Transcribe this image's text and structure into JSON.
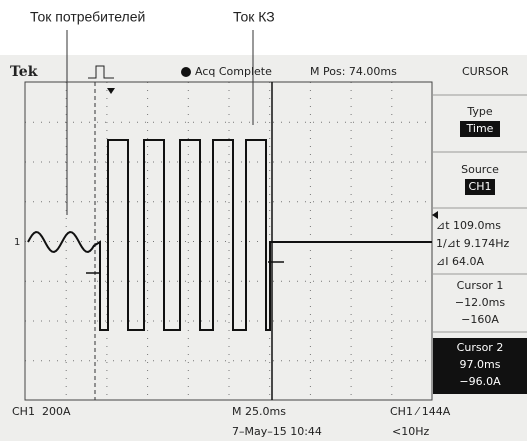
{
  "annotations": {
    "consumer_current": "Ток потребителей",
    "short_circuit_current": "Ток КЗ"
  },
  "header": {
    "brand": "Tek",
    "status": "Acq Complete",
    "position": "M Pos: 74.00ms",
    "menu": "CURSOR"
  },
  "screen": {
    "channel_marker": "1"
  },
  "side_panel": {
    "type_label": "Type",
    "type_value": "Time",
    "source_label": "Source",
    "source_value": "CH1",
    "delta_t": "⊿t 109.0ms",
    "inverse_delta_t": "1/⊿t 9.174Hz",
    "delta_i": "⊿I 64.0A",
    "cursor1_label": "Cursor 1",
    "cursor1_time": "−12.0ms",
    "cursor1_value": "−160A",
    "cursor2_label": "Cursor 2",
    "cursor2_time": "97.0ms",
    "cursor2_value": "−96.0A"
  },
  "footer": {
    "channel_scale": "CH1  200A",
    "time_scale": "M 25.0ms",
    "trigger": "CH1 ⁄ 144A",
    "date": "7–May–15 10:44",
    "frequency": "<10Hz"
  }
}
